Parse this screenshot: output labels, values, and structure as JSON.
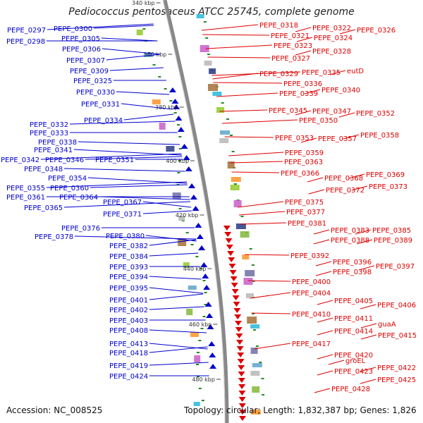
{
  "title": "Pediococcus pentosaceus ATCC 25745, complete genome",
  "footer": {
    "accession": "Accession: NC_008525",
    "topology": "Topology: circular; Length: 1,832,387 bp; Genes: 1,826"
  },
  "colors": {
    "forward_strand": "#0000cc",
    "reverse_strand": "#dd0000",
    "backbone": "#888888",
    "gc_marks": "#228822"
  },
  "scale_ticks": [
    "340 kbp",
    "360 kbp",
    "380 kbp",
    "400 kbp",
    "420 kbp",
    "440 kbp",
    "460 kbp",
    "480 kbp"
  ],
  "left_labels": [
    "PEPE_0297",
    "PEPE_0300",
    "PEPE_0298",
    "PEPE_0305",
    "PEPE_0306",
    "PEPE_0307",
    "PEPE_0309",
    "PEPE_0325",
    "PEPE_0330",
    "PEPE_0331",
    "PEPE_0334",
    "PEPE_0332",
    "PEPE_0333",
    "PEPE_0338",
    "PEPE_0341",
    "PEPE_0342",
    "PEPE_0346",
    "PEPE_0351",
    "PEPE_0348",
    "PEPE_0354",
    "PEPE_0355",
    "PEPE_0360",
    "PEPE_0361",
    "PEPE_0364",
    "PEPE_0367",
    "PEPE_0365",
    "PEPE_0371",
    "PEPE_0376",
    "PEPE_0378",
    "PEPE_0380",
    "PEPE_0382",
    "PEPE_0384",
    "PEPE_0393",
    "PEPE_0394",
    "PEPE_0395",
    "PEPE_0401",
    "PEPE_0402",
    "PEPE_0403",
    "PEPE_0408",
    "PEPE_0413",
    "PEPE_0418",
    "PEPE_0419",
    "PEPE_0424"
  ],
  "right_labels": [
    "PEPE_0318",
    "PEPE_0322",
    "PEPE_0326",
    "PEPE_0321",
    "PEPE_0324",
    "PEPE_0323",
    "PEPE_0328",
    "PEPE_0327",
    "PEPE_0329",
    "PEPE_0335",
    "eutD",
    "PEPE_0336",
    "PEPE_0340",
    "PEPE_0339",
    "PEPE_0345",
    "PEPE_0347",
    "PEPE_0352",
    "PEPE_0350",
    "PEPE_0358",
    "PEPE_0353",
    "PEPE_0357",
    "PEPE_0359",
    "PEPE_0363",
    "PEPE_0366",
    "PEPE_0369",
    "PEPE_0368",
    "PEPE_0373",
    "PEPE_0372",
    "PEPE_0375",
    "PEPE_0377",
    "PEPE_0381",
    "PEPE_0383",
    "PEPE_0385",
    "PEPE_0388",
    "PEPE_0389",
    "PEPE_0392",
    "PEPE_0396",
    "PEPE_0397",
    "PEPE_0398",
    "PEPE_0400",
    "PEPE_0404",
    "PEPE_0405",
    "PEPE_0406",
    "PEPE_0410",
    "PEPE_0411",
    "guaA",
    "PEPE_0414",
    "PEPE_0415",
    "PEPE_0417",
    "PEPE_0420",
    "groEL",
    "PEPE_0422",
    "PEPE_0423",
    "PEPE_0425",
    "PEPE_0428"
  ]
}
